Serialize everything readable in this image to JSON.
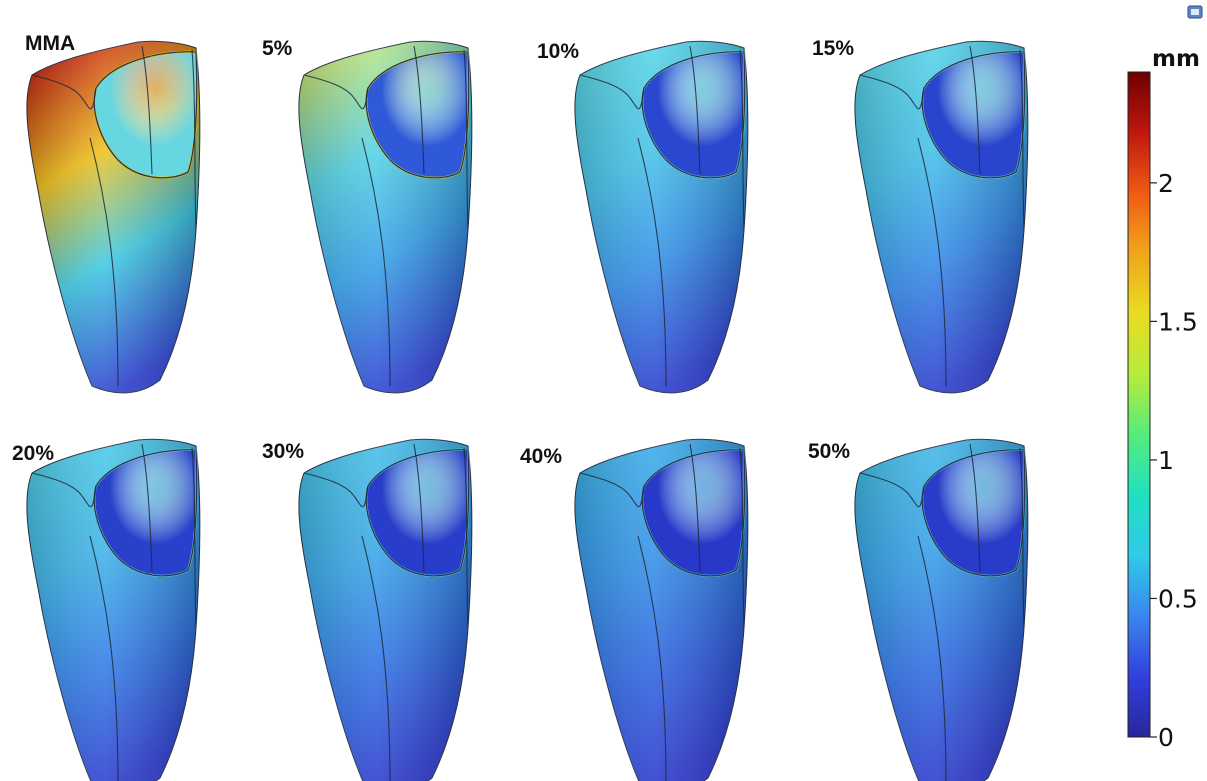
{
  "panels": [
    {
      "label": "MMA",
      "top_color": "#c41a12",
      "mid_color": "#f0c21e",
      "low_color": "#3fc9e2",
      "bottom_color": "#2c3fd0",
      "inner_color": "#66d7e0",
      "rim_color": "#f1c417"
    },
    {
      "label": "5%",
      "top_color": "#d4e86a",
      "mid_color": "#55d3e4",
      "low_color": "#36a0e8",
      "bottom_color": "#2c3fd0",
      "inner_color": "#2f59d8",
      "rim_color": "#c8d94a"
    },
    {
      "label": "10%",
      "top_color": "#5cd9e6",
      "mid_color": "#46c3e8",
      "low_color": "#3590e8",
      "bottom_color": "#2a3acd",
      "inner_color": "#2a48cf",
      "rim_color": "#7adbe0"
    },
    {
      "label": "15%",
      "top_color": "#58d6e6",
      "mid_color": "#44bfe8",
      "low_color": "#348ae8",
      "bottom_color": "#2a3acd",
      "inner_color": "#2945ce",
      "rim_color": "#76d9e0"
    },
    {
      "label": "20%",
      "top_color": "#4fcfe6",
      "mid_color": "#3fb4e8",
      "low_color": "#327ee6",
      "bottom_color": "#2a38cc",
      "inner_color": "#2940cb",
      "rim_color": "#6ad4e2"
    },
    {
      "label": "30%",
      "top_color": "#47c5e6",
      "mid_color": "#3aa8e8",
      "low_color": "#3074e4",
      "bottom_color": "#2a36cb",
      "inner_color": "#283dca",
      "rim_color": "#60cde2"
    },
    {
      "label": "40%",
      "top_color": "#3db3e8",
      "mid_color": "#3494e8",
      "low_color": "#2e66e0",
      "bottom_color": "#2a34ca",
      "inner_color": "#2838c8",
      "rim_color": "#55c2e3"
    },
    {
      "label": "50%",
      "top_color": "#43bfe7",
      "mid_color": "#37a0e8",
      "low_color": "#2f6de2",
      "bottom_color": "#2a35ca",
      "inner_color": "#283bc9",
      "rim_color": "#5bc8e2"
    }
  ],
  "colorbar": {
    "unit": "mm",
    "min": 0,
    "max": 2.4,
    "ticks": [
      {
        "value": 0,
        "label": "0"
      },
      {
        "value": 0.5,
        "label": "0.5"
      },
      {
        "value": 1,
        "label": "1"
      },
      {
        "value": 1.5,
        "label": "1.5"
      },
      {
        "value": 2,
        "label": "2"
      }
    ],
    "colors": [
      "#6e0000",
      "#c0170e",
      "#ef5a14",
      "#f0a61a",
      "#e8dc22",
      "#b7ec3a",
      "#55ec7c",
      "#1fe0c0",
      "#2fcbe8",
      "#3a86ee",
      "#3140de",
      "#28269a"
    ]
  }
}
